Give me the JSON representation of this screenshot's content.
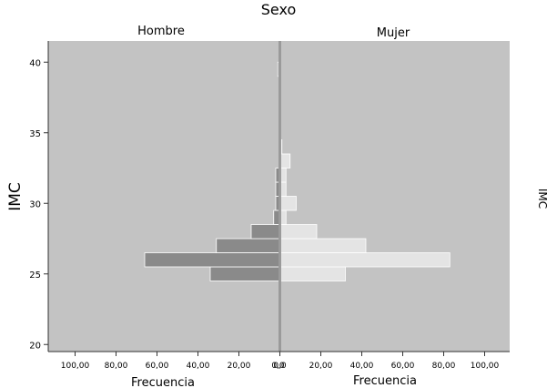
{
  "chart_data": {
    "type": "bar",
    "orientation": "horizontal-pyramid",
    "title": "Sexo",
    "ylabel": "IMC",
    "ylabel_right": "IMC",
    "ylim": [
      19.5,
      41.5
    ],
    "yticks": [
      20,
      25,
      30,
      35,
      40
    ],
    "xlim": [
      0,
      110
    ],
    "xtick_labels_left": [
      "100,00",
      "80,00",
      "60,00",
      "40,00",
      "20,00",
      "0,0"
    ],
    "xtick_values_left": [
      100,
      80,
      60,
      40,
      20,
      0
    ],
    "xtick_labels_right": [
      "0,0",
      "20,00",
      "40,00",
      "60,00",
      "80,00",
      "100,00"
    ],
    "xtick_values_right": [
      0,
      20,
      40,
      60,
      80,
      100
    ],
    "xlabel_left": "Frecuencia",
    "xlabel_right": "Frecuencia",
    "bin_width": 1,
    "series": [
      {
        "name": "Hombre",
        "side": "left",
        "color": "#8a8a8a",
        "bins": [
          {
            "center": 25,
            "value": 34
          },
          {
            "center": 26,
            "value": 66
          },
          {
            "center": 27,
            "value": 31
          },
          {
            "center": 28,
            "value": 14
          },
          {
            "center": 29,
            "value": 3
          },
          {
            "center": 30,
            "value": 2
          },
          {
            "center": 31,
            "value": 2
          },
          {
            "center": 32,
            "value": 2
          },
          {
            "center": 39.5,
            "value": 1
          }
        ]
      },
      {
        "name": "Mujer",
        "side": "right",
        "color": "#e4e4e4",
        "bins": [
          {
            "center": 25,
            "value": 32
          },
          {
            "center": 26,
            "value": 83
          },
          {
            "center": 27,
            "value": 42
          },
          {
            "center": 28,
            "value": 18
          },
          {
            "center": 29,
            "value": 3
          },
          {
            "center": 30,
            "value": 8
          },
          {
            "center": 31,
            "value": 3
          },
          {
            "center": 32,
            "value": 3
          },
          {
            "center": 33,
            "value": 5
          },
          {
            "center": 34,
            "value": 1
          }
        ]
      }
    ],
    "colors": {
      "plot_background": "#c3c3c3",
      "center_line": "#9a9a9a"
    }
  }
}
